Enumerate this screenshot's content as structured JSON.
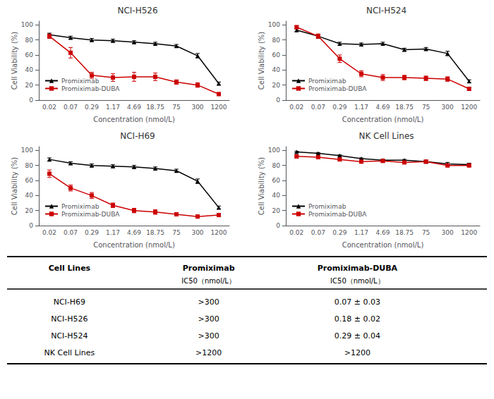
{
  "chart_data": [
    {
      "type": "line",
      "title": "NCI-H526",
      "xlabel": "Concentration (nmol/L)",
      "ylabel": "Cell Viability (%)",
      "categories": [
        "0.02",
        "0.07",
        "0.29",
        "1.17",
        "4.69",
        "18.75",
        "75",
        "300",
        "1200"
      ],
      "series": [
        {
          "name": "Promiximab",
          "color": "#000000",
          "marker": "triangle",
          "values": [
            87,
            83,
            80,
            79,
            77,
            75,
            72,
            59,
            22
          ],
          "errors": [
            2,
            2,
            2,
            2,
            2,
            2,
            2,
            3,
            2
          ]
        },
        {
          "name": "Promiximab-DUBA",
          "color": "#cc0000",
          "marker": "square",
          "values": [
            85,
            63,
            33,
            30,
            31,
            31,
            24,
            20,
            8
          ],
          "errors": [
            3,
            7,
            4,
            5,
            6,
            5,
            3,
            3,
            2
          ]
        }
      ],
      "ylim": [
        0,
        105
      ],
      "yticks": [
        0,
        20,
        40,
        60,
        80,
        100
      ],
      "grid": false,
      "legend": "lower left"
    },
    {
      "type": "line",
      "title": "NCI-H524",
      "xlabel": "Concentration (nmol/L)",
      "ylabel": "Cell Viability (%)",
      "categories": [
        "0.02",
        "0.07",
        "0.29",
        "1.17",
        "4.69",
        "18.75",
        "75",
        "300",
        "1200"
      ],
      "series": [
        {
          "name": "Promiximab",
          "color": "#000000",
          "marker": "triangle",
          "values": [
            93,
            85,
            75,
            74,
            75,
            67,
            68,
            62,
            25
          ],
          "errors": [
            2,
            2,
            2,
            2,
            2,
            2,
            2,
            3,
            2
          ]
        },
        {
          "name": "Promiximab-DUBA",
          "color": "#cc0000",
          "marker": "square",
          "values": [
            97,
            85,
            55,
            35,
            30,
            30,
            29,
            28,
            15
          ],
          "errors": [
            2,
            3,
            5,
            4,
            4,
            3,
            3,
            3,
            2
          ]
        }
      ],
      "ylim": [
        0,
        105
      ],
      "yticks": [
        0,
        20,
        40,
        60,
        80,
        100
      ],
      "grid": false,
      "legend": "lower left"
    },
    {
      "type": "line",
      "title": "NCI-H69",
      "xlabel": "Concentration (nmol/L)",
      "ylabel": "Cell Viability (%)",
      "categories": [
        "0.02",
        "0.07",
        "0.29",
        "1.17",
        "4.69",
        "18.75",
        "75",
        "300",
        "1200"
      ],
      "series": [
        {
          "name": "Promiximab",
          "color": "#000000",
          "marker": "triangle",
          "values": [
            88,
            83,
            80,
            79,
            78,
            76,
            73,
            59,
            24
          ],
          "errors": [
            2,
            2,
            2,
            2,
            2,
            2,
            2,
            3,
            2
          ]
        },
        {
          "name": "Promiximab-DUBA",
          "color": "#cc0000",
          "marker": "square",
          "values": [
            69,
            50,
            40,
            27,
            20,
            18,
            15,
            12,
            14
          ],
          "errors": [
            5,
            4,
            4,
            3,
            3,
            3,
            2,
            2,
            2
          ]
        }
      ],
      "ylim": [
        0,
        105
      ],
      "yticks": [
        0,
        20,
        40,
        60,
        80,
        100
      ],
      "grid": false,
      "legend": "lower left"
    },
    {
      "type": "line",
      "title": "NK Cell Lines",
      "xlabel": "Concentration (nmol/L)",
      "ylabel": "Cell Viability (%)",
      "categories": [
        "0.02",
        "0.07",
        "0.29",
        "1.17",
        "4.69",
        "18.75",
        "75",
        "300",
        "1200"
      ],
      "series": [
        {
          "name": "Promiximab",
          "color": "#000000",
          "marker": "triangle",
          "values": [
            98,
            96,
            93,
            89,
            87,
            87,
            85,
            82,
            81
          ],
          "errors": [
            1,
            1,
            1,
            1,
            1,
            1,
            2,
            2,
            2
          ]
        },
        {
          "name": "Promiximab-DUBA",
          "color": "#cc0000",
          "marker": "square",
          "values": [
            92,
            91,
            88,
            85,
            86,
            84,
            85,
            80,
            80
          ],
          "errors": [
            2,
            2,
            2,
            2,
            2,
            2,
            2,
            2,
            2
          ]
        }
      ],
      "ylim": [
        0,
        105
      ],
      "yticks": [
        0,
        20,
        40,
        60,
        80,
        100
      ],
      "grid": false,
      "legend": "lower left"
    },
    {
      "type": "table",
      "header": [
        "Cell Lines",
        "Promiximab",
        "Promiximab-DUBA"
      ],
      "subheader": [
        null,
        "IC50（nmol/L）",
        "IC50（nmol/L）"
      ],
      "rows": [
        [
          "NCI-H69",
          ">300",
          "0.07 ± 0.03"
        ],
        [
          "NCI-H526",
          ">300",
          "0.18 ± 0.02"
        ],
        [
          "NCI-H524",
          ">300",
          "0.29 ± 0.04"
        ],
        [
          "NK Cell Lines",
          ">1200",
          ">1200"
        ]
      ]
    }
  ]
}
